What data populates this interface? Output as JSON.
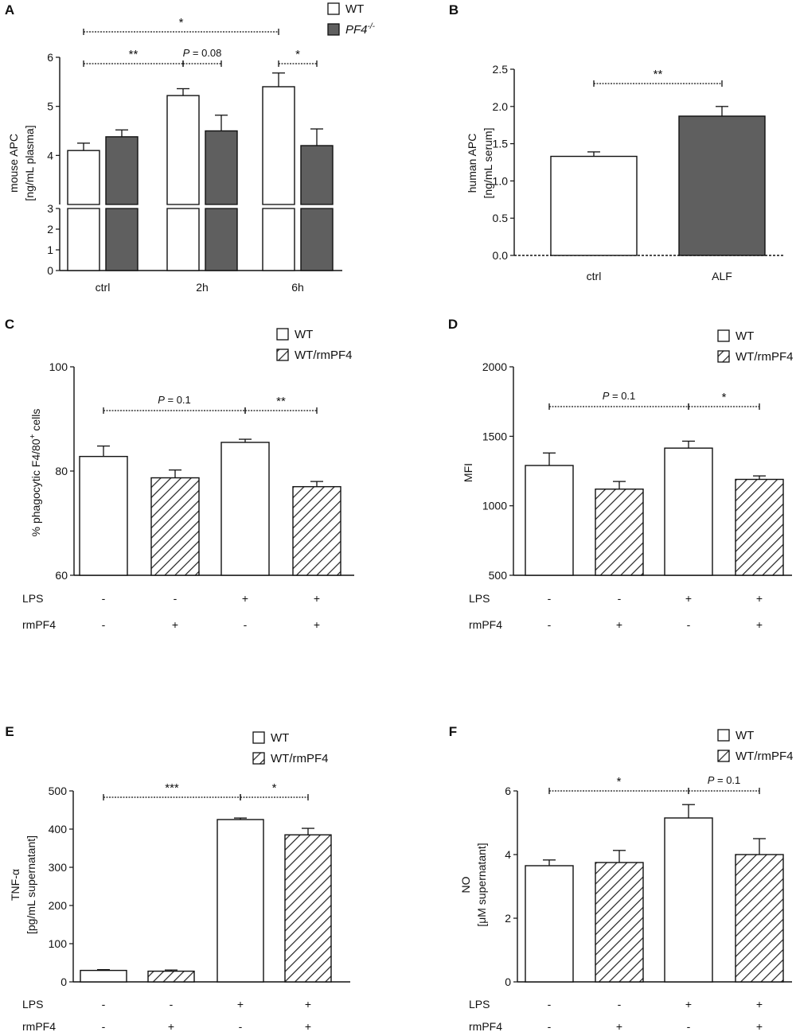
{
  "colors": {
    "wt": "#ffffff",
    "ko": "#5f5f5f",
    "hatch": "#222222",
    "axis": "#111111"
  },
  "chart_data": [
    {
      "id": "A",
      "type": "bar",
      "panel_label": "A",
      "ylabel_line1": "mouse APC",
      "ylabel_line2": "[ng/mL plasma]",
      "axis_break": true,
      "ylim_low": [
        0,
        3
      ],
      "ylim_high": [
        3,
        6
      ],
      "categories": [
        "ctrl",
        "2h",
        "6h"
      ],
      "series": [
        {
          "name": "WT",
          "fill": "white",
          "values": [
            4.1,
            5.22,
            5.4
          ],
          "errors": [
            0.15,
            0.14,
            0.28
          ]
        },
        {
          "name": "PF4",
          "name_sup": "-/-",
          "fill": "grey",
          "values": [
            4.38,
            4.5,
            4.2
          ],
          "errors": [
            0.14,
            0.32,
            0.34
          ]
        }
      ],
      "legend": [
        "WT",
        "PF4-/-"
      ],
      "significance": [
        {
          "label": "*",
          "from": "ctrl-WT",
          "to": "6h-WT"
        },
        {
          "label": "**",
          "from": "ctrl-WT",
          "to": "2h-WT"
        },
        {
          "label": "P = 0.08",
          "from": "2h-WT",
          "to": "2h-PF4-/-"
        },
        {
          "label": "*",
          "from": "6h-WT",
          "to": "6h-PF4-/-"
        }
      ]
    },
    {
      "id": "B",
      "type": "bar",
      "panel_label": "B",
      "ylabel_line1": "human APC",
      "ylabel_line2": "[ng/mL serum]",
      "ylim": [
        0,
        2.5
      ],
      "ticks": [
        "0.0",
        "0.5",
        "1.0",
        "1.5",
        "2.0",
        "2.5"
      ],
      "categories": [
        "ctrl",
        "ALF"
      ],
      "values": [
        1.33,
        1.87
      ],
      "errors": [
        0.06,
        0.13
      ],
      "fills": [
        "white",
        "grey"
      ],
      "significance": [
        {
          "label": "**",
          "from": "ctrl",
          "to": "ALF"
        }
      ]
    },
    {
      "id": "C",
      "type": "bar",
      "panel_label": "C",
      "ylabel": "% phagocytic F4/80",
      "ylabel_sup": "+",
      "ylabel_suffix": " cells",
      "ylim": [
        60,
        100
      ],
      "ticks": [
        "60",
        "80",
        "100"
      ],
      "values": [
        82.8,
        78.7,
        85.5,
        77.0
      ],
      "errors": [
        2.0,
        1.5,
        0.6,
        1.0
      ],
      "fills": [
        "white",
        "hatch",
        "white",
        "hatch"
      ],
      "legend": [
        "WT",
        "WT/rmPF4"
      ],
      "row1_label": "LPS",
      "row1": [
        "-",
        "-",
        "+",
        "+"
      ],
      "row2_label": "rmPF4",
      "row2": [
        "-",
        "+",
        "-",
        "+"
      ],
      "significance": [
        {
          "label": "P = 0.1",
          "from": 1,
          "to": 3
        },
        {
          "label": "**",
          "from": 3,
          "to": 4
        }
      ]
    },
    {
      "id": "D",
      "type": "bar",
      "panel_label": "D",
      "ylabel": "MFI",
      "ylim": [
        500,
        2000
      ],
      "ticks": [
        "500",
        "1000",
        "1500",
        "2000"
      ],
      "values": [
        1290,
        1120,
        1415,
        1190
      ],
      "errors": [
        90,
        55,
        50,
        25
      ],
      "fills": [
        "white",
        "hatch",
        "white",
        "hatch"
      ],
      "legend": [
        "WT",
        "WT/rmPF4"
      ],
      "row1_label": "LPS",
      "row1": [
        "-",
        "-",
        "+",
        "+"
      ],
      "row2_label": "rmPF4",
      "row2": [
        "-",
        "+",
        "-",
        "+"
      ],
      "significance": [
        {
          "label": "P = 0.1",
          "from": 1,
          "to": 3
        },
        {
          "label": "*",
          "from": 3,
          "to": 4
        }
      ]
    },
    {
      "id": "E",
      "type": "bar",
      "panel_label": "E",
      "ylabel_line1": "TNF-α",
      "ylabel_line2": "[pg/mL supernatant]",
      "ylim": [
        0,
        500
      ],
      "ticks": [
        "0",
        "100",
        "200",
        "300",
        "400",
        "500"
      ],
      "values": [
        30,
        28,
        425,
        385
      ],
      "errors": [
        2,
        3,
        4,
        17
      ],
      "fills": [
        "white",
        "hatch",
        "white",
        "hatch"
      ],
      "legend": [
        "WT",
        "WT/rmPF4"
      ],
      "row1_label": "LPS",
      "row1": [
        "-",
        "-",
        "+",
        "+"
      ],
      "row2_label": "rmPF4",
      "row2": [
        "-",
        "+",
        "-",
        "+"
      ],
      "significance": [
        {
          "label": "***",
          "from": 1,
          "to": 3
        },
        {
          "label": "*",
          "from": 3,
          "to": 4
        }
      ]
    },
    {
      "id": "F",
      "type": "bar",
      "panel_label": "F",
      "ylabel_line1": "NO",
      "ylabel_line2": "[μM supernatant]",
      "ylim": [
        0,
        6
      ],
      "ticks": [
        "0",
        "2",
        "4",
        "6"
      ],
      "values": [
        3.65,
        3.75,
        5.15,
        4.0
      ],
      "errors": [
        0.18,
        0.38,
        0.42,
        0.5
      ],
      "fills": [
        "white",
        "hatch",
        "white",
        "hatch"
      ],
      "legend": [
        "WT",
        "WT/rmPF4"
      ],
      "row1_label": "LPS",
      "row1": [
        "-",
        "-",
        "+",
        "+"
      ],
      "row2_label": "rmPF4",
      "row2": [
        "-",
        "+",
        "-",
        "+"
      ],
      "significance": [
        {
          "label": "*",
          "from": 1,
          "to": 3
        },
        {
          "label": "P = 0.1",
          "from": 3,
          "to": 4
        }
      ]
    }
  ]
}
